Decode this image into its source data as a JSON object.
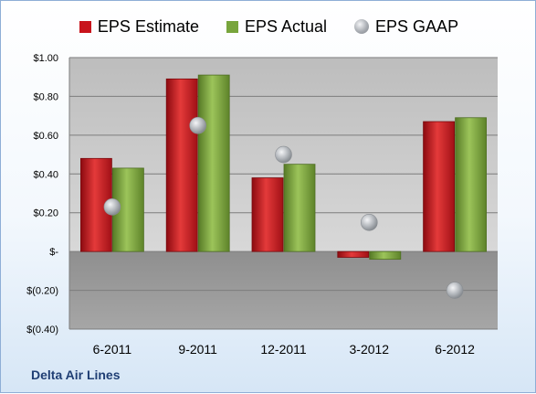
{
  "company_label": "Delta Air Lines",
  "chart_data": {
    "type": "bar",
    "categories": [
      "6-2011",
      "9-2011",
      "12-2011",
      "3-2012",
      "6-2012"
    ],
    "series": [
      {
        "name": "EPS Estimate",
        "kind": "bar",
        "color": "#c8141c",
        "values": [
          0.48,
          0.89,
          0.38,
          -0.03,
          0.67
        ]
      },
      {
        "name": "EPS Actual",
        "kind": "bar",
        "color": "#78a53c",
        "values": [
          0.43,
          0.91,
          0.45,
          -0.04,
          0.69
        ]
      },
      {
        "name": "EPS GAAP",
        "kind": "marker",
        "color": "#a8acb2",
        "values": [
          0.23,
          0.65,
          0.5,
          0.15,
          -0.2
        ]
      }
    ],
    "ylim": [
      -0.4,
      1.0
    ],
    "yticks": [
      1.0,
      0.8,
      0.6,
      0.4,
      0.2,
      0.0,
      -0.2,
      -0.4
    ],
    "ytick_labels": [
      "$1.00",
      "$0.80",
      "$0.60",
      "$0.40",
      "$0.20",
      "$-",
      "$(0.20)",
      "$(0.40)"
    ],
    "legend_position": "top",
    "grid": true
  }
}
